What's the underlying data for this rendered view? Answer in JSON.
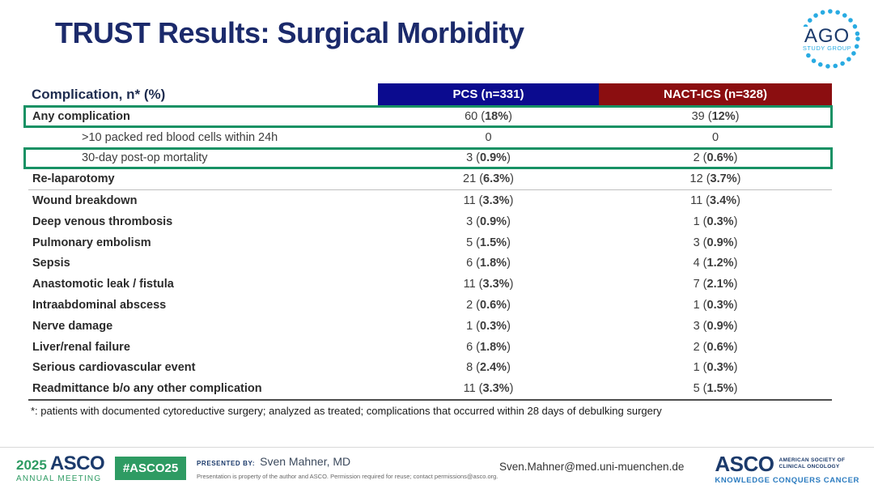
{
  "slide": {
    "title": "TRUST Results: Surgical Morbidity"
  },
  "ago_logo": {
    "name": "AGO",
    "subtitle": "STUDY GROUP",
    "dot_color": "#29ABE2",
    "text_color": "#1b3a6b"
  },
  "colors": {
    "title_navy": "#1b2a6b",
    "pcs_header_bg": "#0b0b8f",
    "nact_header_bg": "#8b0e10",
    "highlight_green": "#179164",
    "asco_green": "#2E9B63",
    "tagline_blue": "#2C7CC0"
  },
  "table": {
    "header": {
      "label": "Complication, n* (%)",
      "pcs": "PCS (n=331)",
      "nact": "NACT-ICS (n=328)"
    },
    "rows": [
      {
        "label": "Any complication",
        "bold": true,
        "indent": false,
        "boxed": true,
        "sep": false,
        "pcs": {
          "pre": "60 (",
          "b": "18%",
          "post": ")"
        },
        "nact": {
          "pre": "39 (",
          "b": "12%",
          "post": ")"
        }
      },
      {
        "label": ">10 packed red blood cells within 24h",
        "bold": false,
        "indent": true,
        "boxed": false,
        "sep": false,
        "pcs": {
          "pre": "0",
          "b": "",
          "post": ""
        },
        "nact": {
          "pre": "0",
          "b": "",
          "post": ""
        }
      },
      {
        "label": "30-day post-op mortality",
        "bold": false,
        "indent": true,
        "boxed": true,
        "sep": false,
        "pcs": {
          "pre": "3 (",
          "b": "0.9%",
          "post": ")"
        },
        "nact": {
          "pre": "2 (",
          "b": "0.6%",
          "post": ")"
        }
      },
      {
        "label": "Re-laparotomy",
        "bold": true,
        "indent": false,
        "boxed": false,
        "sep": true,
        "pcs": {
          "pre": "21 (",
          "b": "6.3%",
          "post": ")"
        },
        "nact": {
          "pre": "12 (",
          "b": "3.7%",
          "post": ")"
        }
      },
      {
        "label": "Wound breakdown",
        "bold": true,
        "indent": false,
        "boxed": false,
        "sep": false,
        "pcs": {
          "pre": "11 (",
          "b": "3.3%",
          "post": ")"
        },
        "nact": {
          "pre": "11 (",
          "b": "3.4%",
          "post": ")"
        }
      },
      {
        "label": "Deep venous thrombosis",
        "bold": true,
        "indent": false,
        "boxed": false,
        "sep": false,
        "pcs": {
          "pre": "3 (",
          "b": "0.9%",
          "post": ")"
        },
        "nact": {
          "pre": "1 (",
          "b": "0.3%",
          "post": ")"
        }
      },
      {
        "label": "Pulmonary embolism",
        "bold": true,
        "indent": false,
        "boxed": false,
        "sep": false,
        "pcs": {
          "pre": "5 (",
          "b": "1.5%",
          "post": ")"
        },
        "nact": {
          "pre": "3 (",
          "b": "0.9%",
          "post": ")"
        }
      },
      {
        "label": "Sepsis",
        "bold": true,
        "indent": false,
        "boxed": false,
        "sep": false,
        "pcs": {
          "pre": "6 (",
          "b": "1.8%",
          "post": ")"
        },
        "nact": {
          "pre": "4 (",
          "b": "1.2%",
          "post": ")"
        }
      },
      {
        "label": "Anastomotic leak / fistula",
        "bold": true,
        "indent": false,
        "boxed": false,
        "sep": false,
        "pcs": {
          "pre": "11 (",
          "b": "3.3%",
          "post": ")"
        },
        "nact": {
          "pre": "7 (",
          "b": "2.1%",
          "post": ")"
        }
      },
      {
        "label": "Intraabdominal abscess",
        "bold": true,
        "indent": false,
        "boxed": false,
        "sep": false,
        "pcs": {
          "pre": "2 (",
          "b": "0.6%",
          "post": ")"
        },
        "nact": {
          "pre": "1 (",
          "b": "0.3%",
          "post": ")"
        }
      },
      {
        "label": "Nerve damage",
        "bold": true,
        "indent": false,
        "boxed": false,
        "sep": false,
        "pcs": {
          "pre": "1 (",
          "b": "0.3%",
          "post": ")"
        },
        "nact": {
          "pre": "3 (",
          "b": "0.9%",
          "post": ")"
        }
      },
      {
        "label": "Liver/renal failure",
        "bold": true,
        "indent": false,
        "boxed": false,
        "sep": false,
        "pcs": {
          "pre": "6 (",
          "b": "1.8%",
          "post": ")"
        },
        "nact": {
          "pre": "2 (",
          "b": "0.6%",
          "post": ")"
        }
      },
      {
        "label": "Serious cardiovascular event",
        "bold": true,
        "indent": false,
        "boxed": false,
        "sep": false,
        "pcs": {
          "pre": "8 (",
          "b": "2.4%",
          "post": ")"
        },
        "nact": {
          "pre": "1 (",
          "b": "0.3%",
          "post": ")"
        }
      },
      {
        "label": "Readmittance b/o any other complication",
        "bold": true,
        "indent": false,
        "boxed": false,
        "sep": false,
        "pcs": {
          "pre": "11 (",
          "b": "3.3%",
          "post": ")"
        },
        "nact": {
          "pre": "5 (",
          "b": "1.5%",
          "post": ")"
        }
      }
    ]
  },
  "footnote": "*: patients with documented cytoreductive surgery; analyzed as treated; complications that occurred within 28 days of debulking surgery",
  "footer": {
    "meeting": {
      "year": "2025",
      "org": "ASCO",
      "line2": "ANNUAL MEETING"
    },
    "hashtag": "#ASCO25",
    "presented_by_label": "PRESENTED BY:",
    "presenter": "Sven Mahner, MD",
    "disclaimer": "Presentation is property of the author and ASCO. Permission required for reuse; contact permissions@asco.org.",
    "email": "Sven.Mahner@med.uni-muenchen.de",
    "asco_logo": {
      "name": "ASCO",
      "society_line1": "AMERICAN SOCIETY OF",
      "society_line2": "CLINICAL ONCOLOGY",
      "tagline": "KNOWLEDGE CONQUERS CANCER"
    }
  }
}
